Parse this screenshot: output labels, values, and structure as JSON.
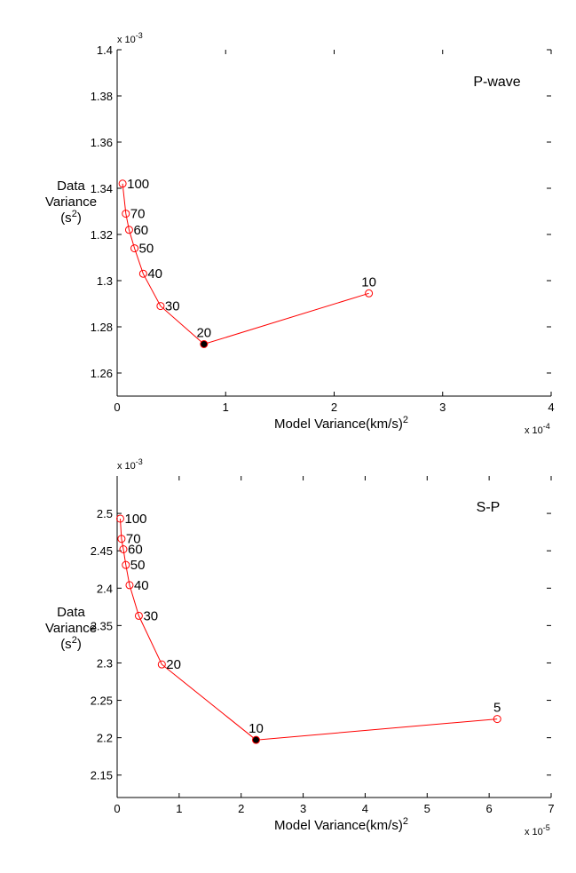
{
  "chart_data": [
    {
      "type": "line",
      "title": "P-wave",
      "xlabel": "Model Variance(km/s)",
      "xlabel_sup": "2",
      "ylabel_lines": [
        "Data",
        "Variance",
        "(s"
      ],
      "ylabel_sup": "2",
      "ylabel_close": ")",
      "x_exponent": "x 10",
      "x_exponent_power": "-4",
      "y_exponent": "x 10",
      "y_exponent_power": "-3",
      "xlim": [
        0,
        4
      ],
      "ylim": [
        1.25,
        1.4
      ],
      "xticks": [
        0,
        1,
        2,
        3,
        4
      ],
      "xtick_labels": [
        "0",
        "1",
        "2",
        "3",
        "4"
      ],
      "yticks": [
        1.26,
        1.28,
        1.3,
        1.32,
        1.34,
        1.36,
        1.38,
        1.4
      ],
      "ytick_labels": [
        "1.26",
        "1.28",
        "1.3",
        "1.32",
        "1.34",
        "1.36",
        "1.38",
        "1.4"
      ],
      "line_color": "#ff0000",
      "highlight_color": "#000000",
      "points": [
        {
          "x": 0.05,
          "y": 1.342,
          "label": "100",
          "highlight": false
        },
        {
          "x": 0.08,
          "y": 1.329,
          "label": "70",
          "highlight": false
        },
        {
          "x": 0.11,
          "y": 1.322,
          "label": "60",
          "highlight": false
        },
        {
          "x": 0.16,
          "y": 1.314,
          "label": "50",
          "highlight": false
        },
        {
          "x": 0.24,
          "y": 1.303,
          "label": "40",
          "highlight": false
        },
        {
          "x": 0.4,
          "y": 1.289,
          "label": "30",
          "highlight": false
        },
        {
          "x": 0.8,
          "y": 1.2725,
          "label": "20",
          "highlight": true
        },
        {
          "x": 2.32,
          "y": 1.2945,
          "label": "10",
          "highlight": false
        }
      ]
    },
    {
      "type": "line",
      "title": "S-P",
      "xlabel": "Model Variance(km/s)",
      "xlabel_sup": "2",
      "ylabel_lines": [
        "Data",
        "Variance",
        "(s"
      ],
      "ylabel_sup": "2",
      "ylabel_close": ")",
      "x_exponent": "x 10",
      "x_exponent_power": "-5",
      "y_exponent": "x 10",
      "y_exponent_power": "-3",
      "xlim": [
        0,
        7
      ],
      "ylim": [
        2.12,
        2.55
      ],
      "xticks": [
        0,
        1,
        2,
        3,
        4,
        5,
        6,
        7
      ],
      "xtick_labels": [
        "0",
        "1",
        "2",
        "3",
        "4",
        "5",
        "6",
        "7"
      ],
      "yticks": [
        2.15,
        2.2,
        2.25,
        2.3,
        2.35,
        2.4,
        2.45,
        2.5
      ],
      "ytick_labels": [
        "2.15",
        "2.2",
        "2.25",
        "2.3",
        "2.35",
        "2.4",
        "2.45",
        "2.5"
      ],
      "line_color": "#ff0000",
      "highlight_color": "#000000",
      "points": [
        {
          "x": 0.05,
          "y": 2.493,
          "label": "100",
          "highlight": false
        },
        {
          "x": 0.07,
          "y": 2.466,
          "label": "70",
          "highlight": false
        },
        {
          "x": 0.1,
          "y": 2.452,
          "label": "60",
          "highlight": false
        },
        {
          "x": 0.14,
          "y": 2.431,
          "label": "50",
          "highlight": false
        },
        {
          "x": 0.2,
          "y": 2.404,
          "label": "40",
          "highlight": false
        },
        {
          "x": 0.35,
          "y": 2.363,
          "label": "30",
          "highlight": false
        },
        {
          "x": 0.72,
          "y": 2.298,
          "label": "20",
          "highlight": false
        },
        {
          "x": 2.24,
          "y": 2.197,
          "label": "10",
          "highlight": true
        },
        {
          "x": 6.13,
          "y": 2.225,
          "label": "5",
          "highlight": false
        }
      ]
    }
  ]
}
